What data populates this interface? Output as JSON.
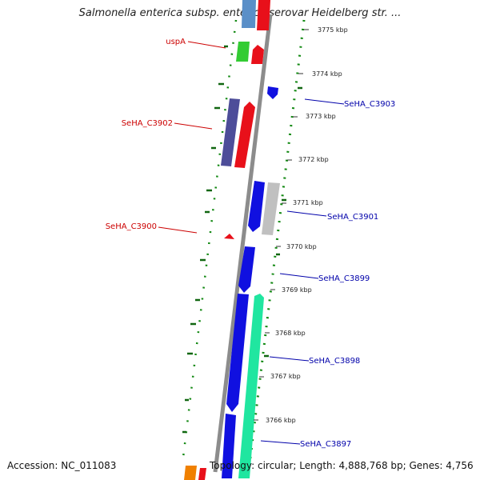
{
  "title": "Salmonella enterica subsp. enterica serovar Heidelberg str. ...",
  "footer": {
    "accession": "Accession: NC_011083",
    "topology": "Topology: circular; Length: 4,888,768 bp; Genes: 4,756"
  },
  "colors": {
    "reverse_label": "#cc0000",
    "forward_label": "#0000aa",
    "backbone": "#888888",
    "gc_dots": "#118811"
  },
  "ticks": [
    "3775 kbp",
    "3774 kbp",
    "3773 kbp",
    "3772 kbp",
    "3771 kbp",
    "3770 kbp",
    "3769 kbp",
    "3768 kbp",
    "3767 kbp",
    "3766 kbp"
  ],
  "gene_labels": [
    {
      "text": "uspA",
      "strand": "reverse"
    },
    {
      "text": "SeHA_C3903",
      "strand": "forward"
    },
    {
      "text": "SeHA_C3902",
      "strand": "reverse"
    },
    {
      "text": "SeHA_C3901",
      "strand": "forward"
    },
    {
      "text": "SeHA_C3900",
      "strand": "reverse"
    },
    {
      "text": "SeHA_C3899",
      "strand": "forward"
    },
    {
      "text": "SeHA_C3898",
      "strand": "forward"
    },
    {
      "text": "SeHA_C3897",
      "strand": "forward"
    }
  ]
}
